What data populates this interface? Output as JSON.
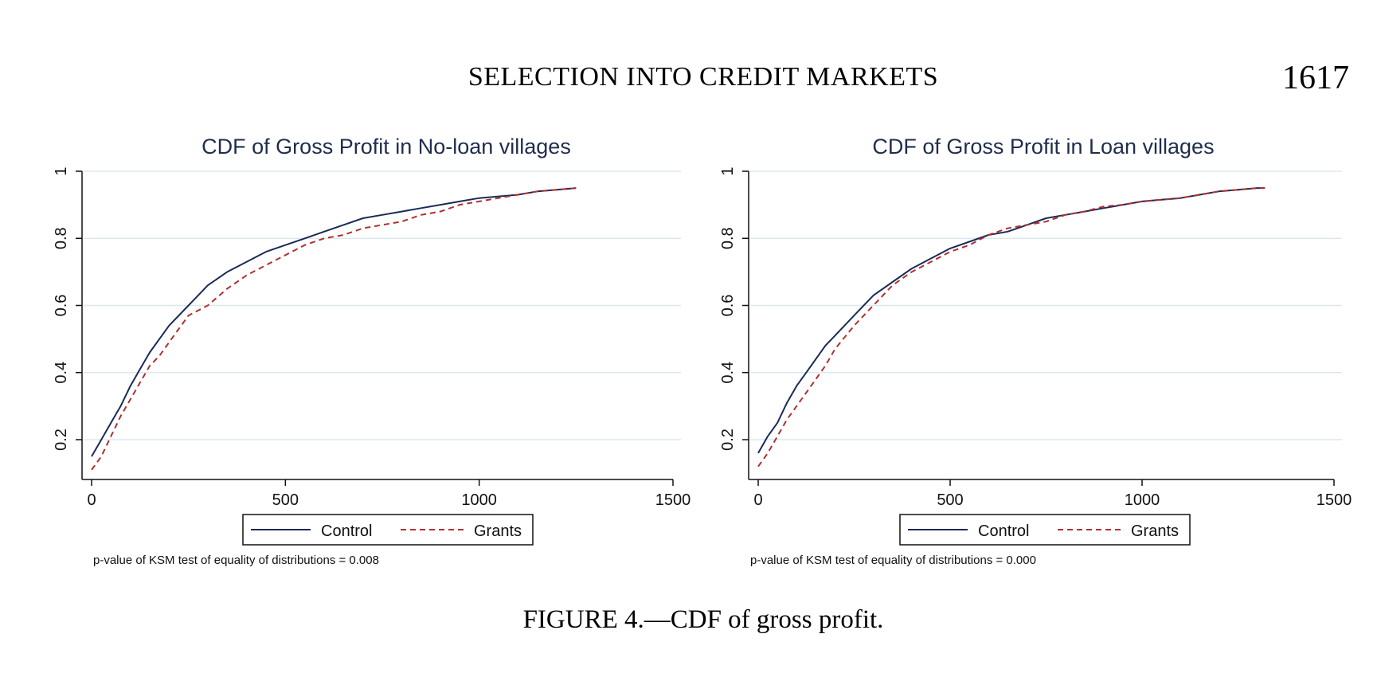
{
  "header": {
    "running_title": "SELECTION INTO CREDIT MARKETS",
    "page_number": "1617"
  },
  "figure": {
    "caption": "FIGURE 4.—CDF of gross profit."
  },
  "colors": {
    "control": "#1a2b55",
    "grants": "#b03030",
    "gridline": "#dde8ee",
    "title": "#1f2d4d"
  },
  "chart_data": [
    {
      "type": "line",
      "title": "CDF of Gross Profit in No-loan villages",
      "xlabel": "",
      "ylabel": "",
      "xlim": [
        0,
        1500
      ],
      "ylim": [
        0.1,
        1.0
      ],
      "xticks": [
        "0",
        "500",
        "1000",
        "1500"
      ],
      "yticks": [
        "0.2",
        "0.4",
        "0.6",
        "0.8",
        "1"
      ],
      "grid": true,
      "legend": {
        "placement": "bottom",
        "entries": [
          "Control",
          "Grants"
        ]
      },
      "note": "p-value of KSM test of equality of distributions = 0.008",
      "series": [
        {
          "name": "Control",
          "style": "solid",
          "x": [
            0,
            25,
            50,
            75,
            100,
            125,
            150,
            175,
            200,
            250,
            300,
            350,
            400,
            450,
            500,
            550,
            600,
            650,
            700,
            750,
            800,
            850,
            900,
            950,
            1000,
            1050,
            1100,
            1150,
            1200,
            1250
          ],
          "y": [
            0.15,
            0.2,
            0.25,
            0.3,
            0.36,
            0.41,
            0.46,
            0.5,
            0.54,
            0.6,
            0.66,
            0.7,
            0.73,
            0.76,
            0.78,
            0.8,
            0.82,
            0.84,
            0.86,
            0.87,
            0.88,
            0.89,
            0.9,
            0.91,
            0.92,
            0.925,
            0.93,
            0.94,
            0.945,
            0.95
          ]
        },
        {
          "name": "Grants",
          "style": "dashed",
          "x": [
            0,
            25,
            50,
            75,
            100,
            125,
            150,
            175,
            200,
            250,
            300,
            350,
            400,
            450,
            500,
            550,
            600,
            650,
            700,
            750,
            800,
            850,
            900,
            950,
            1000,
            1050,
            1100,
            1150,
            1200,
            1250
          ],
          "y": [
            0.11,
            0.15,
            0.21,
            0.27,
            0.32,
            0.37,
            0.42,
            0.45,
            0.49,
            0.57,
            0.6,
            0.65,
            0.69,
            0.72,
            0.75,
            0.78,
            0.8,
            0.81,
            0.83,
            0.84,
            0.85,
            0.87,
            0.88,
            0.9,
            0.91,
            0.92,
            0.93,
            0.94,
            0.945,
            0.95
          ]
        }
      ]
    },
    {
      "type": "line",
      "title": "CDF of Gross Profit in Loan villages",
      "xlabel": "",
      "ylabel": "",
      "xlim": [
        0,
        1500
      ],
      "ylim": [
        0.1,
        1.0
      ],
      "xticks": [
        "0",
        "500",
        "1000",
        "1500"
      ],
      "yticks": [
        "0.2",
        "0.4",
        "0.6",
        "0.8",
        "1"
      ],
      "grid": true,
      "legend": {
        "placement": "bottom",
        "entries": [
          "Control",
          "Grants"
        ]
      },
      "note": "p-value of KSM test of equality of distributions = 0.000",
      "series": [
        {
          "name": "Control",
          "style": "solid",
          "x": [
            0,
            25,
            50,
            75,
            100,
            125,
            150,
            175,
            200,
            250,
            300,
            350,
            400,
            450,
            500,
            550,
            600,
            650,
            700,
            750,
            800,
            850,
            900,
            950,
            1000,
            1050,
            1100,
            1150,
            1200,
            1250,
            1300,
            1320
          ],
          "y": [
            0.16,
            0.21,
            0.25,
            0.31,
            0.36,
            0.4,
            0.44,
            0.48,
            0.51,
            0.57,
            0.63,
            0.67,
            0.71,
            0.74,
            0.77,
            0.79,
            0.81,
            0.82,
            0.84,
            0.86,
            0.87,
            0.88,
            0.89,
            0.9,
            0.91,
            0.915,
            0.92,
            0.93,
            0.94,
            0.945,
            0.95,
            0.95
          ]
        },
        {
          "name": "Grants",
          "style": "dashed",
          "x": [
            0,
            25,
            50,
            75,
            100,
            125,
            150,
            175,
            200,
            250,
            300,
            350,
            400,
            450,
            500,
            550,
            600,
            650,
            700,
            750,
            800,
            850,
            900,
            950,
            1000,
            1050,
            1100,
            1150,
            1200,
            1250,
            1300,
            1320
          ],
          "y": [
            0.12,
            0.16,
            0.21,
            0.26,
            0.3,
            0.34,
            0.38,
            0.42,
            0.47,
            0.54,
            0.6,
            0.66,
            0.7,
            0.73,
            0.76,
            0.78,
            0.81,
            0.83,
            0.84,
            0.85,
            0.87,
            0.88,
            0.895,
            0.9,
            0.91,
            0.915,
            0.92,
            0.93,
            0.94,
            0.945,
            0.95,
            0.95
          ]
        }
      ]
    }
  ]
}
